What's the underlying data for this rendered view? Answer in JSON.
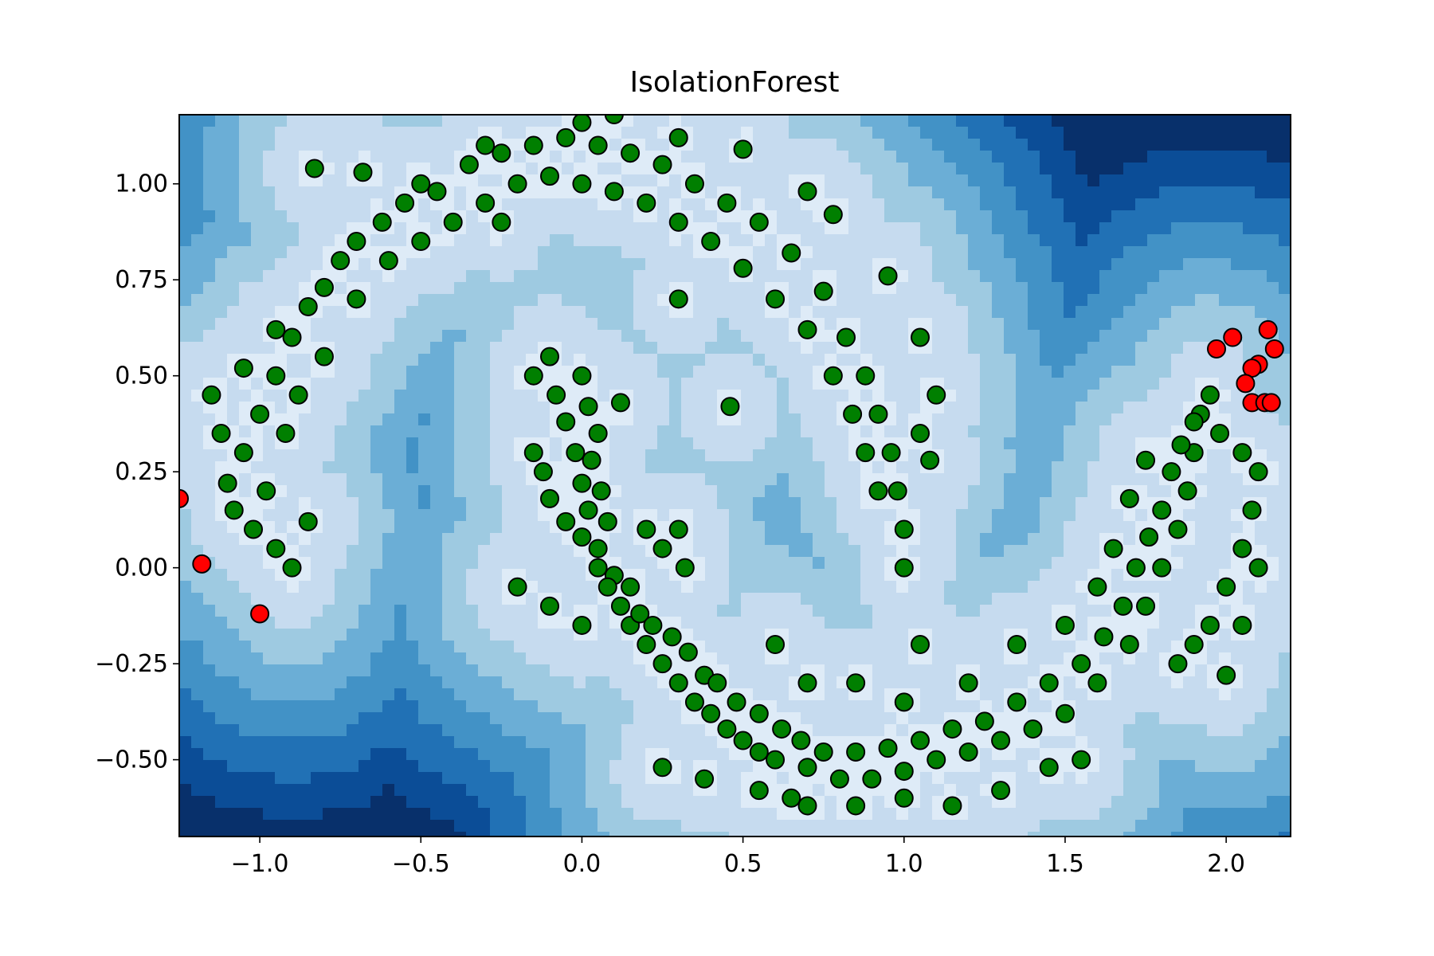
{
  "chart_data": {
    "type": "scatter",
    "title": "IsolationForest",
    "xlabel": "",
    "ylabel": "",
    "xlim": [
      -1.25,
      2.2
    ],
    "ylim": [
      -0.7,
      1.18
    ],
    "xticks": [
      -1.0,
      -0.5,
      0.0,
      0.5,
      1.0,
      1.5,
      2.0
    ],
    "xtick_labels": [
      "−1.0",
      "−0.5",
      "0.0",
      "0.5",
      "1.0",
      "1.5",
      "2.0"
    ],
    "yticks": [
      1.0,
      0.75,
      0.5,
      0.25,
      0.0,
      -0.25,
      -0.5
    ],
    "ytick_labels": [
      "1.00",
      "0.75",
      "0.50",
      "0.25",
      "0.00",
      "−0.25",
      "−0.50"
    ],
    "grid": false,
    "background": "filled contour of anomaly score (Blues colormap), lighter inside the two-moons region",
    "colors": {
      "inlier": "#007f00",
      "outlier": "#ff0000",
      "marker_edge": "#000000",
      "contour_levels": [
        "#08306b",
        "#0b4d97",
        "#2171b5",
        "#4292c6",
        "#6baed6",
        "#9ecae1",
        "#c6dbef",
        "#deebf7"
      ]
    },
    "series": [
      {
        "role": "inliers",
        "color": "#007f00",
        "points": [
          [
            -1.1,
            0.22
          ],
          [
            -1.05,
            0.3
          ],
          [
            -1.0,
            0.4
          ],
          [
            -0.95,
            0.5
          ],
          [
            -0.9,
            0.6
          ],
          [
            -0.85,
            0.68
          ],
          [
            -0.8,
            0.73
          ],
          [
            -0.75,
            0.8
          ],
          [
            -0.7,
            0.85
          ],
          [
            -0.62,
            0.9
          ],
          [
            -0.55,
            0.95
          ],
          [
            -0.45,
            0.98
          ],
          [
            -0.35,
            1.05
          ],
          [
            -0.25,
            1.08
          ],
          [
            -0.15,
            1.1
          ],
          [
            -0.05,
            1.12
          ],
          [
            0.05,
            1.1
          ],
          [
            0.15,
            1.08
          ],
          [
            0.25,
            1.05
          ],
          [
            0.35,
            1.0
          ],
          [
            0.45,
            0.95
          ],
          [
            0.55,
            0.9
          ],
          [
            0.65,
            0.82
          ],
          [
            0.75,
            0.72
          ],
          [
            0.82,
            0.6
          ],
          [
            0.88,
            0.5
          ],
          [
            0.92,
            0.4
          ],
          [
            0.96,
            0.3
          ],
          [
            0.98,
            0.2
          ],
          [
            1.0,
            0.1
          ],
          [
            -1.08,
            0.15
          ],
          [
            -0.98,
            0.2
          ],
          [
            -0.92,
            0.35
          ],
          [
            -0.88,
            0.45
          ],
          [
            -0.8,
            0.55
          ],
          [
            -0.7,
            0.7
          ],
          [
            -0.6,
            0.8
          ],
          [
            -0.5,
            0.85
          ],
          [
            -0.4,
            0.9
          ],
          [
            -0.3,
            0.95
          ],
          [
            -0.2,
            1.0
          ],
          [
            -0.1,
            1.02
          ],
          [
            0.0,
            1.0
          ],
          [
            0.1,
            0.98
          ],
          [
            0.2,
            0.95
          ],
          [
            0.3,
            0.9
          ],
          [
            0.4,
            0.85
          ],
          [
            0.5,
            0.78
          ],
          [
            0.6,
            0.7
          ],
          [
            0.7,
            0.62
          ],
          [
            0.78,
            0.5
          ],
          [
            0.84,
            0.4
          ],
          [
            0.88,
            0.3
          ],
          [
            0.92,
            0.2
          ],
          [
            -1.02,
            0.1
          ],
          [
            -0.95,
            0.05
          ],
          [
            -0.9,
            0.0
          ],
          [
            -0.85,
            0.12
          ],
          [
            -1.12,
            0.35
          ],
          [
            -1.15,
            0.45
          ],
          [
            -1.05,
            0.52
          ],
          [
            -0.95,
            0.62
          ],
          [
            -0.83,
            1.04
          ],
          [
            -0.68,
            1.03
          ],
          [
            -0.5,
            1.0
          ],
          [
            -0.3,
            1.1
          ],
          [
            0.0,
            1.16
          ],
          [
            0.1,
            1.18
          ],
          [
            0.3,
            1.12
          ],
          [
            0.5,
            1.09
          ],
          [
            0.7,
            0.98
          ],
          [
            0.78,
            0.92
          ],
          [
            0.95,
            0.76
          ],
          [
            1.05,
            0.6
          ],
          [
            1.1,
            0.45
          ],
          [
            1.05,
            0.35
          ],
          [
            1.08,
            0.28
          ],
          [
            1.0,
            0.0
          ],
          [
            0.0,
            0.5
          ],
          [
            0.02,
            0.42
          ],
          [
            0.05,
            0.35
          ],
          [
            0.03,
            0.28
          ],
          [
            0.06,
            0.2
          ],
          [
            0.08,
            0.12
          ],
          [
            0.05,
            0.05
          ],
          [
            0.1,
            -0.02
          ],
          [
            0.12,
            -0.1
          ],
          [
            0.15,
            -0.15
          ],
          [
            0.2,
            -0.2
          ],
          [
            0.25,
            -0.25
          ],
          [
            0.3,
            -0.3
          ],
          [
            0.35,
            -0.35
          ],
          [
            0.4,
            -0.38
          ],
          [
            0.45,
            -0.42
          ],
          [
            0.5,
            -0.45
          ],
          [
            0.55,
            -0.48
          ],
          [
            0.6,
            -0.5
          ],
          [
            0.7,
            -0.52
          ],
          [
            0.8,
            -0.55
          ],
          [
            0.9,
            -0.55
          ],
          [
            1.0,
            -0.53
          ],
          [
            1.1,
            -0.5
          ],
          [
            1.2,
            -0.48
          ],
          [
            1.3,
            -0.45
          ],
          [
            1.4,
            -0.42
          ],
          [
            1.5,
            -0.38
          ],
          [
            1.6,
            -0.3
          ],
          [
            1.7,
            -0.2
          ],
          [
            1.75,
            -0.1
          ],
          [
            1.8,
            0.0
          ],
          [
            1.85,
            0.1
          ],
          [
            1.88,
            0.2
          ],
          [
            1.9,
            0.3
          ],
          [
            1.92,
            0.4
          ],
          [
            1.95,
            0.45
          ],
          [
            -0.08,
            0.45
          ],
          [
            -0.05,
            0.38
          ],
          [
            -0.02,
            0.3
          ],
          [
            0.0,
            0.22
          ],
          [
            0.02,
            0.15
          ],
          [
            0.0,
            0.08
          ],
          [
            0.05,
            0.0
          ],
          [
            0.08,
            -0.05
          ],
          [
            0.15,
            -0.05
          ],
          [
            0.18,
            -0.12
          ],
          [
            0.22,
            -0.15
          ],
          [
            0.28,
            -0.18
          ],
          [
            0.33,
            -0.22
          ],
          [
            0.38,
            -0.28
          ],
          [
            0.42,
            -0.3
          ],
          [
            0.48,
            -0.35
          ],
          [
            0.55,
            -0.38
          ],
          [
            0.62,
            -0.42
          ],
          [
            0.68,
            -0.45
          ],
          [
            0.75,
            -0.48
          ],
          [
            0.85,
            -0.48
          ],
          [
            0.95,
            -0.47
          ],
          [
            1.05,
            -0.45
          ],
          [
            1.15,
            -0.42
          ],
          [
            1.25,
            -0.4
          ],
          [
            1.35,
            -0.35
          ],
          [
            1.45,
            -0.3
          ],
          [
            1.55,
            -0.25
          ],
          [
            1.62,
            -0.18
          ],
          [
            1.68,
            -0.1
          ],
          [
            1.72,
            0.0
          ],
          [
            1.76,
            0.08
          ],
          [
            1.8,
            0.15
          ],
          [
            1.83,
            0.25
          ],
          [
            1.86,
            0.32
          ],
          [
            1.9,
            0.38
          ],
          [
            1.98,
            0.35
          ],
          [
            2.05,
            0.3
          ],
          [
            2.1,
            0.25
          ],
          [
            2.08,
            0.15
          ],
          [
            2.05,
            0.05
          ],
          [
            2.0,
            -0.05
          ],
          [
            1.95,
            -0.15
          ],
          [
            1.9,
            -0.2
          ],
          [
            1.85,
            -0.25
          ],
          [
            2.0,
            -0.28
          ],
          [
            2.05,
            -0.15
          ],
          [
            2.1,
            0.0
          ],
          [
            0.65,
            -0.6
          ],
          [
            0.7,
            -0.62
          ],
          [
            0.85,
            -0.62
          ],
          [
            1.0,
            -0.6
          ],
          [
            1.15,
            -0.62
          ],
          [
            1.3,
            -0.58
          ],
          [
            1.45,
            -0.52
          ],
          [
            1.55,
            -0.5
          ],
          [
            0.25,
            -0.52
          ],
          [
            0.38,
            -0.55
          ],
          [
            0.55,
            -0.58
          ],
          [
            0.46,
            0.42
          ],
          [
            0.6,
            -0.2
          ],
          [
            0.7,
            -0.3
          ],
          [
            0.85,
            -0.3
          ],
          [
            1.0,
            -0.35
          ],
          [
            1.05,
            -0.2
          ],
          [
            1.2,
            -0.3
          ],
          [
            1.35,
            -0.2
          ],
          [
            1.5,
            -0.15
          ],
          [
            1.6,
            -0.05
          ],
          [
            1.65,
            0.05
          ],
          [
            1.7,
            0.18
          ],
          [
            1.75,
            0.28
          ],
          [
            -0.15,
            0.3
          ],
          [
            -0.12,
            0.25
          ],
          [
            -0.1,
            0.18
          ],
          [
            -0.05,
            0.12
          ],
          [
            -0.2,
            -0.05
          ],
          [
            -0.1,
            -0.1
          ],
          [
            0.0,
            -0.15
          ],
          [
            0.2,
            0.1
          ],
          [
            0.25,
            0.05
          ],
          [
            0.3,
            0.1
          ],
          [
            0.32,
            0.0
          ],
          [
            0.12,
            0.43
          ],
          [
            -0.15,
            0.5
          ],
          [
            -0.1,
            0.55
          ],
          [
            0.3,
            0.7
          ],
          [
            -0.25,
            0.9
          ]
        ]
      },
      {
        "role": "outliers",
        "color": "#ff0000",
        "points": [
          [
            -1.25,
            0.18
          ],
          [
            -1.18,
            0.01
          ],
          [
            -1.0,
            -0.12
          ],
          [
            1.97,
            0.57
          ],
          [
            2.02,
            0.6
          ],
          [
            2.13,
            0.62
          ],
          [
            2.15,
            0.57
          ],
          [
            2.1,
            0.53
          ],
          [
            2.08,
            0.52
          ],
          [
            2.06,
            0.48
          ],
          [
            2.08,
            0.43
          ],
          [
            2.12,
            0.43
          ],
          [
            2.14,
            0.43
          ]
        ]
      }
    ]
  }
}
